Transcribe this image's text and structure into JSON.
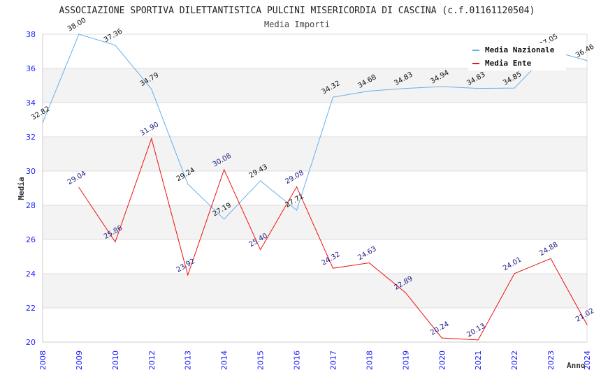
{
  "chart_data": {
    "type": "line",
    "title": "ASSOCIAZIONE SPORTIVA DILETTANTISTICA PULCINI MISERICORDIA DI CASCINA (c.f.01161120504)",
    "subtitle": "Media Importi",
    "xlabel": "Anno",
    "ylabel": "Media",
    "ylim": [
      20,
      38
    ],
    "yticks": [
      "20",
      "22",
      "24",
      "26",
      "28",
      "30",
      "32",
      "34",
      "36",
      "38"
    ],
    "grid": true,
    "legend_position": "top-right",
    "categories": [
      "2008",
      "2009",
      "2010",
      "2012",
      "2013",
      "2014",
      "2015",
      "2016",
      "2017",
      "2018",
      "2019",
      "2020",
      "2021",
      "2022",
      "2023",
      "2024"
    ],
    "series": [
      {
        "name": "Media Nazionale",
        "color": "#6aaee8",
        "values": [
          32.82,
          38.0,
          37.36,
          34.79,
          29.24,
          27.19,
          29.43,
          27.71,
          34.32,
          34.68,
          34.83,
          34.94,
          34.83,
          34.85,
          37.05,
          36.46
        ],
        "labels": [
          "32.82",
          "38.00",
          "37.36",
          "34.79",
          "29.24",
          "27.19",
          "29.43",
          "27.71",
          "34.32",
          "34.68",
          "34.83",
          "34.94",
          "34.83",
          "34.85",
          "37.05",
          "36.46"
        ]
      },
      {
        "name": "Media Ente",
        "color": "#ee1111",
        "values": [
          null,
          29.04,
          25.86,
          31.9,
          23.92,
          30.08,
          25.4,
          29.08,
          24.32,
          24.63,
          22.89,
          20.24,
          20.13,
          24.01,
          24.88,
          21.02
        ],
        "labels": [
          null,
          "29.04",
          "25.86",
          "31.90",
          "23.92",
          "30.08",
          "25.40",
          "29.08",
          "24.32",
          "24.63",
          "22.89",
          "20.24",
          "20.13",
          "24.01",
          "24.88",
          "21.02"
        ]
      }
    ]
  }
}
